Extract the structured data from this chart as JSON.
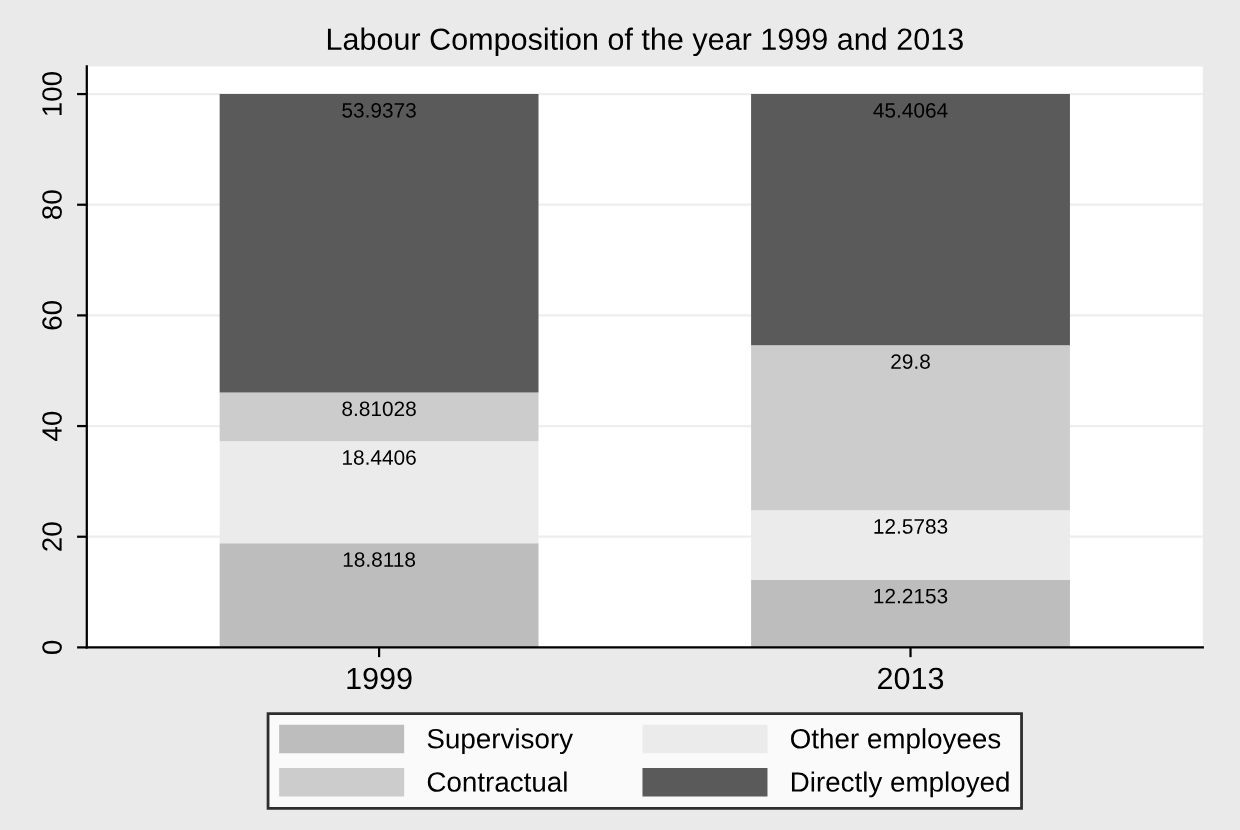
{
  "chart_data": {
    "type": "bar",
    "stacked": true,
    "title": "Labour Composition of the year 1999 and 2013",
    "categories": [
      "1999",
      "2013"
    ],
    "series": [
      {
        "name": "Supervisory",
        "color": "#bdbdbd",
        "values": [
          18.8118,
          12.2153
        ]
      },
      {
        "name": "Other employees",
        "color": "#ebebeb",
        "values": [
          18.4406,
          12.5783
        ]
      },
      {
        "name": "Contractual",
        "color": "#cccccc",
        "values": [
          8.81028,
          29.8
        ]
      },
      {
        "name": "Directly employed",
        "color": "#5a5a5a",
        "values": [
          53.9373,
          45.4064
        ]
      }
    ],
    "ylim": [
      0,
      105
    ],
    "yticks": [
      0,
      20,
      40,
      60,
      80,
      100
    ],
    "grid": "y",
    "legend": "bottom",
    "data_labels": true
  }
}
